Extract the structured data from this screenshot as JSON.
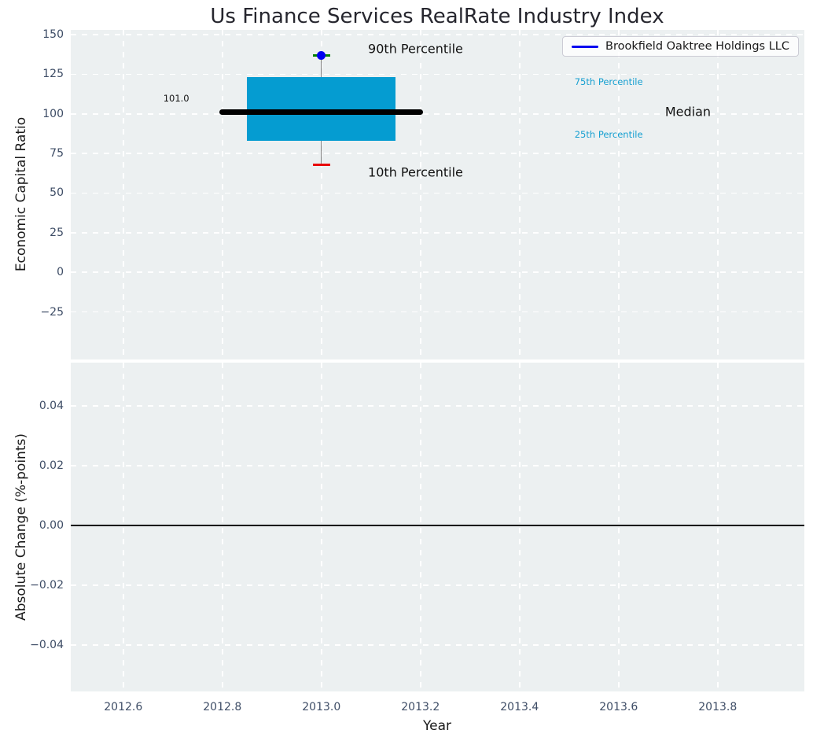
{
  "title": "Us Finance Services RealRate Industry Index",
  "legend": {
    "label": "Brookfield Oaktree Holdings LLC",
    "line_color": "#0000F0"
  },
  "axes": {
    "x": {
      "label": "Year",
      "ticks": [
        {
          "label": "2012.6",
          "value": 2012.6
        },
        {
          "label": "2012.8",
          "value": 2012.8
        },
        {
          "label": "2013.0",
          "value": 2013.0
        },
        {
          "label": "2013.2",
          "value": 2013.2
        },
        {
          "label": "2013.4",
          "value": 2013.4
        },
        {
          "label": "2013.6",
          "value": 2013.6
        },
        {
          "label": "2013.8",
          "value": 2013.8
        }
      ]
    },
    "top": {
      "ylabel": "Economic Capital Ratio",
      "ticks": [
        {
          "label": "150",
          "value": 150
        },
        {
          "label": "125",
          "value": 125
        },
        {
          "label": "100",
          "value": 100
        },
        {
          "label": "75",
          "value": 75
        },
        {
          "label": "50",
          "value": 50
        },
        {
          "label": "25",
          "value": 25
        },
        {
          "label": "0",
          "value": 0
        },
        {
          "label": "−25",
          "value": -25
        }
      ]
    },
    "bottom": {
      "ylabel": "Absolute Change (%-points)",
      "ticks": [
        {
          "label": "0.04",
          "value": 0.04
        },
        {
          "label": "0.02",
          "value": 0.02
        },
        {
          "label": "0.00",
          "value": 0
        },
        {
          "label": "−0.02",
          "value": -0.02
        },
        {
          "label": "−0.04",
          "value": -0.04
        }
      ]
    }
  },
  "colors": {
    "axes_bg": "#ECF0F1",
    "grid": "#FFFFFF",
    "box_fill": "#059CD1",
    "median_line": "#000000",
    "whisker": "#808080",
    "cap_upper": "#008000",
    "cap_lower": "#E80000",
    "company_line": "#0000F0",
    "tick_label": "#3E4D66",
    "annotation_cyan": "#18A0D1",
    "zero_line": "#000000"
  },
  "chart_data": [
    {
      "type": "boxplot",
      "title": "Us Finance Services RealRate Industry Index",
      "xlabel": "Year",
      "ylabel": "Economic Capital Ratio",
      "xlim": [
        2012.494,
        2013.975
      ],
      "ylim": [
        -55,
        153
      ],
      "grid": true,
      "legend_position": "upper right",
      "x": 2013.0,
      "box": {
        "p10": 68,
        "p25": 83,
        "median": 101.0,
        "p75": 123,
        "p90": 137,
        "box_halfwidth": 0.15,
        "median_halfwidth": 0.2,
        "cap_halfwidth": 0.0175
      },
      "series": [
        {
          "name": "Brookfield Oaktree Holdings LLC",
          "x": [
            2013.0
          ],
          "y": [
            137
          ],
          "color": "#0000F0"
        }
      ],
      "annotations": [
        {
          "text": "90th Percentile",
          "x": 2013.19,
          "y": 141,
          "color": "#111111",
          "font_px": 16
        },
        {
          "text": "10th Percentile",
          "x": 2013.19,
          "y": 63,
          "color": "#111111",
          "font_px": 16
        },
        {
          "text": "75th Percentile",
          "x": 2013.58,
          "y": 120,
          "color": "#18A0D1",
          "font_px": 11.5
        },
        {
          "text": "Median",
          "x": 2013.74,
          "y": 101.5,
          "color": "#111111",
          "font_px": 16
        },
        {
          "text": "25th Percentile",
          "x": 2013.58,
          "y": 87,
          "color": "#18A0D1",
          "font_px": 11.5
        },
        {
          "text": "101.0",
          "x": 2012.707,
          "y": 110,
          "color": "#111111",
          "font_px": 11.5
        }
      ]
    },
    {
      "type": "line",
      "xlabel": "Year",
      "ylabel": "Absolute Change (%-points)",
      "xlim": [
        2012.494,
        2013.975
      ],
      "ylim": [
        -0.0555,
        0.0545
      ],
      "grid": true,
      "series": [],
      "reference_line_y": 0.0
    }
  ]
}
